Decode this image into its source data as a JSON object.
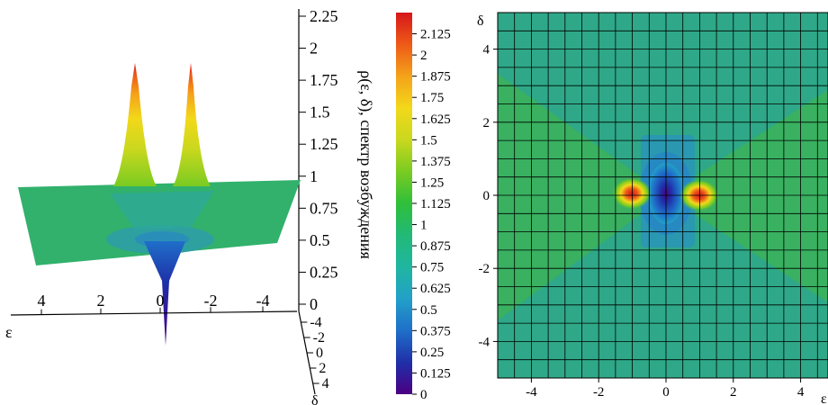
{
  "surface_plot": {
    "z_axis_title": "ρ(ε, δ), спектр возбуждения",
    "z_ticks": [
      "0",
      "0.25",
      "0.5",
      "0.75",
      "1",
      "1.25",
      "1.5",
      "1.75",
      "2",
      "2.25"
    ],
    "eps_axis_label": "ε",
    "eps_ticks": [
      "4",
      "2",
      "0",
      "-2",
      "-4"
    ],
    "delta_axis_label": "δ",
    "delta_ticks": [
      "-4",
      "-2",
      "0",
      "2",
      "4"
    ]
  },
  "colorbar": {
    "ticks": [
      "0",
      "0.125",
      "0.25",
      "0.375",
      "0.5",
      "0.625",
      "0.75",
      "0.875",
      "1",
      "1.125",
      "1.25",
      "1.375",
      "1.5",
      "1.625",
      "1.75",
      "1.875",
      "2",
      "2.125"
    ],
    "range": [
      0,
      2.25
    ],
    "colors": [
      "#4B0082",
      "#1F2FA8",
      "#1F6FC9",
      "#22A0C8",
      "#1FB6A0",
      "#22B977",
      "#2FBF3A",
      "#7ACB22",
      "#C9D81E",
      "#F3D81A",
      "#F4A21A",
      "#EE5A18",
      "#D7161A"
    ]
  },
  "contour_plot": {
    "x_axis_label": "ε",
    "y_axis_label": "δ",
    "x_ticks": [
      "-4",
      "-2",
      "0",
      "2",
      "4"
    ],
    "y_ticks": [
      "4",
      "2",
      "0",
      "-2",
      "-4"
    ],
    "background_color": "#2EA888",
    "wedge_color": "#39B160"
  },
  "chart_data": [
    {
      "type": "surface",
      "x_name": "ε",
      "y_name": "δ",
      "z_name": "ρ(ε, δ), спектр возбуждения",
      "xlim": [
        -5,
        5
      ],
      "ylim": [
        -5,
        5
      ],
      "zlim": [
        0,
        2.25
      ],
      "baseline_z": 0.8,
      "features": [
        {
          "kind": "peak",
          "eps": 1,
          "delta": 0,
          "z": 2.2
        },
        {
          "kind": "peak",
          "eps": -1,
          "delta": 0,
          "z": 2.2
        },
        {
          "kind": "dip",
          "eps": 0,
          "delta": 0,
          "z": 0
        }
      ]
    },
    {
      "type": "heatmap",
      "xlim": [
        -5,
        5
      ],
      "ylim": [
        -5,
        5
      ],
      "x_ticks": [
        -4,
        -2,
        0,
        2,
        4
      ],
      "y_ticks": [
        -4,
        -2,
        0,
        2,
        4
      ],
      "grid": true,
      "features": [
        {
          "kind": "hotspot",
          "eps": 1,
          "delta": 0,
          "value": 2.2
        },
        {
          "kind": "hotspot",
          "eps": -1,
          "delta": 0,
          "value": 2.2
        },
        {
          "kind": "dip",
          "eps": 0,
          "delta": 0,
          "value": 0
        }
      ]
    }
  ]
}
